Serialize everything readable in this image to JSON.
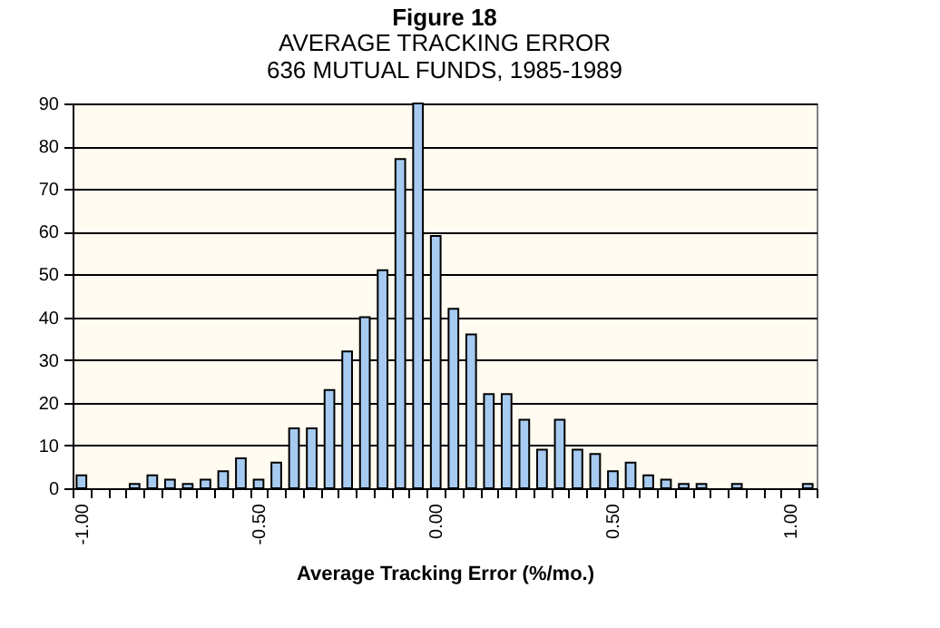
{
  "chart_data": {
    "type": "bar",
    "title": "Figure 18",
    "subtitle": "AVERAGE TRACKING ERROR\n636 MUTUAL FUNDS, 1985-1989",
    "xlabel": "Average Tracking Error (%/mo.)",
    "categories": [
      "-1.00",
      null,
      null,
      null,
      null,
      null,
      null,
      null,
      null,
      null,
      "-0.50",
      null,
      null,
      null,
      null,
      null,
      null,
      null,
      null,
      null,
      "0.00",
      null,
      null,
      null,
      null,
      null,
      null,
      null,
      null,
      null,
      "0.50",
      null,
      null,
      null,
      null,
      null,
      null,
      null,
      null,
      null,
      "1.00",
      null
    ],
    "values": [
      3,
      0,
      0,
      1,
      3,
      2,
      1,
      2,
      4,
      7,
      2,
      6,
      14,
      14,
      23,
      32,
      40,
      51,
      77,
      90,
      59,
      42,
      36,
      22,
      22,
      16,
      9,
      16,
      9,
      8,
      4,
      6,
      3,
      2,
      1,
      1,
      0,
      1,
      0,
      0,
      0,
      1
    ],
    "color": "#a6caf0",
    "ylim": [
      0,
      90
    ],
    "yticks": [
      0,
      10,
      20,
      30,
      40,
      50,
      60,
      70,
      80,
      90
    ],
    "grid": "y"
  }
}
